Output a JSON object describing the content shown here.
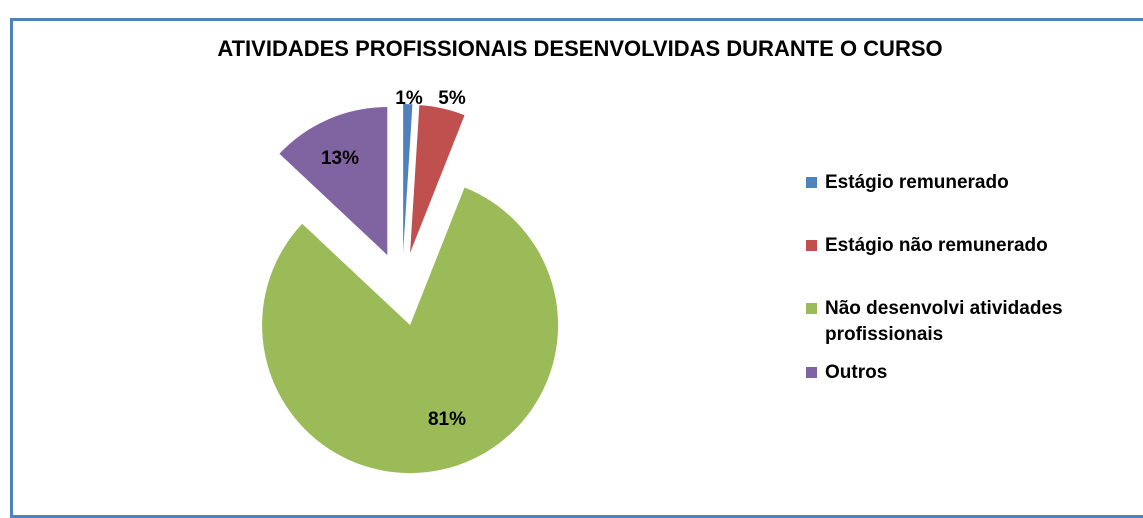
{
  "chart_data": {
    "type": "pie",
    "title": "ATIVIDADES PROFISSIONAIS DESENVOLVIDAS DURANTE O CURSO",
    "categories": [
      "Estágio remunerado",
      "Estágio não remunerado",
      "Não desenvolvi atividades profissionais",
      "Outros"
    ],
    "values": [
      1,
      5,
      81,
      13
    ],
    "value_labels": [
      "1%",
      "5%",
      "81%",
      "13%"
    ],
    "colors": [
      "#4f81bd",
      "#c0504d",
      "#9bbb59",
      "#8064a2"
    ],
    "legend": "right"
  }
}
